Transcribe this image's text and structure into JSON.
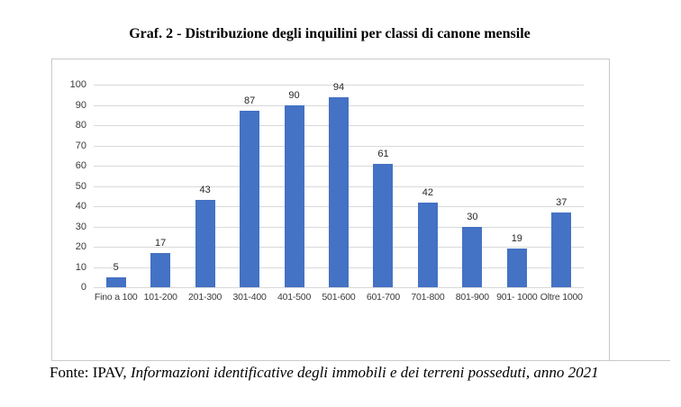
{
  "title": "Graf. 2 - Distribuzione degli inquilini per classi di canone mensile",
  "footer": {
    "prefix": "Fonte: IPAV, ",
    "italic": "Informazioni identificative degli immobili e dei terreni posseduti, anno 2021"
  },
  "chart_data": {
    "type": "bar",
    "title": "Graf. 2 - Distribuzione degli inquilini per classi di canone mensile",
    "categories": [
      "Fino a 100",
      "101-200",
      "201-300",
      "301-400",
      "401-500",
      "501-600",
      "601-700",
      "701-800",
      "801-900",
      "901- 1000",
      "Oltre 1000"
    ],
    "values": [
      5,
      17,
      43,
      87,
      90,
      94,
      61,
      42,
      30,
      19,
      37
    ],
    "xlabel": "",
    "ylabel": "",
    "ylim": [
      0,
      100
    ],
    "ytick_step": 10,
    "grid": true,
    "legend": "none",
    "bar_color": "#4472C4",
    "gridline_color": "#D9D9D9",
    "axis_text_color": "#3a3a3a"
  }
}
